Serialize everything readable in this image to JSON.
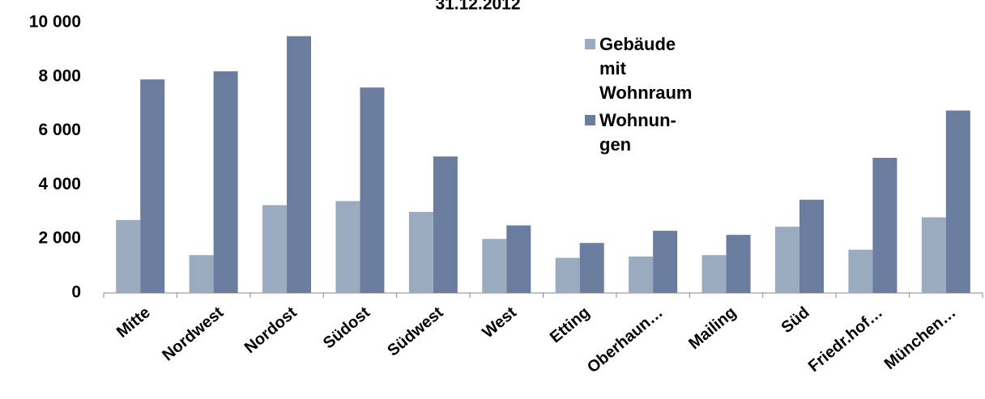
{
  "chart_data": {
    "type": "bar",
    "title": "31.12.2012",
    "categories": [
      "Mitte",
      "Nordwest",
      "Nordost",
      "Südost",
      "Südwest",
      "West",
      "Etting",
      "Oberhaun…",
      "Mailing",
      "Süd",
      "Friedr.hof…",
      "München…"
    ],
    "series": [
      {
        "name": "Gebäude mit Wohnraum",
        "color": "#9aabbf",
        "values": [
          2700,
          1400,
          3250,
          3400,
          3000,
          2000,
          1300,
          1350,
          1400,
          2450,
          1600,
          2800
        ]
      },
      {
        "name": "Wohnun-gen",
        "color": "#6a7d9e",
        "values": [
          7900,
          8200,
          9500,
          7600,
          5050,
          2500,
          1850,
          2300,
          2150,
          3450,
          5000,
          6750
        ]
      }
    ],
    "ylim": [
      0,
      10000
    ],
    "yticks": [
      0,
      {
        "value": 2000,
        "label": "2 000"
      },
      {
        "value": 4000,
        "label": "4 000"
      },
      {
        "value": 6000,
        "label": "6 000"
      },
      {
        "value": 8000,
        "label": "8 000"
      },
      {
        "value": 10000,
        "label": "10 000"
      }
    ],
    "grid": false,
    "legend": "top-right"
  }
}
